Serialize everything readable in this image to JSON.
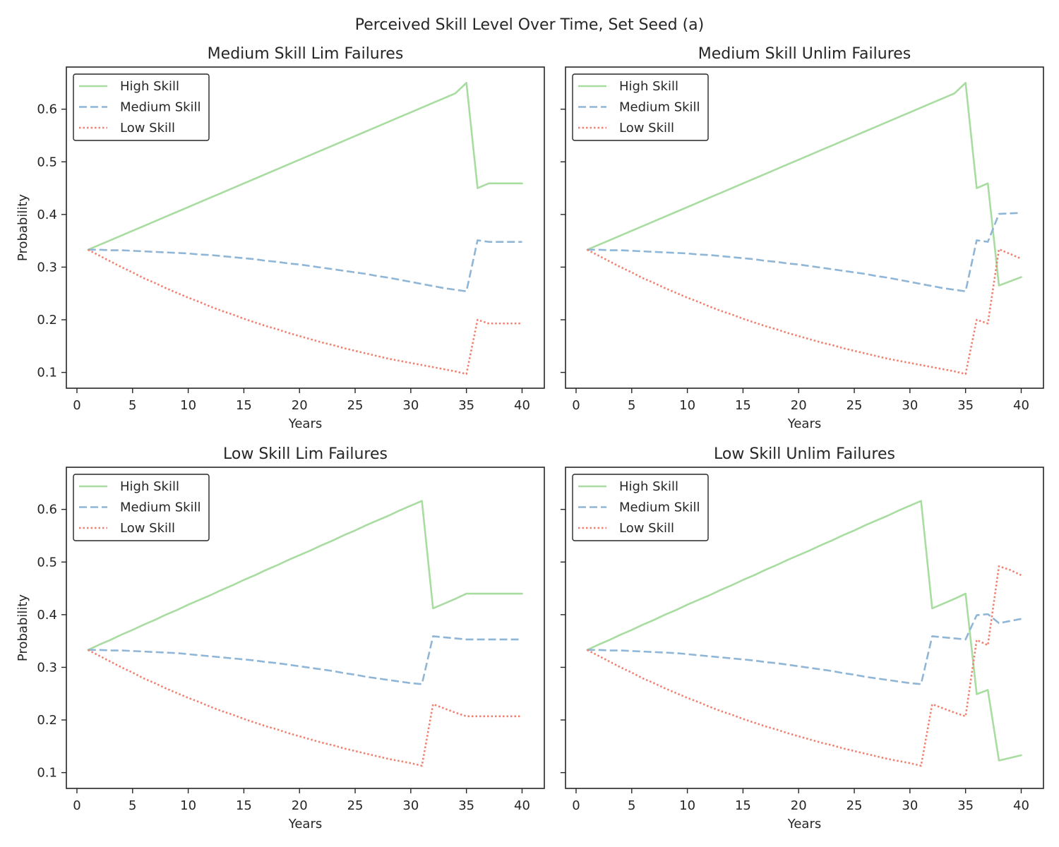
{
  "figure": {
    "suptitle": "Perceived Skill Level Over Time, Set Seed (a)"
  },
  "style": {
    "colors": {
      "high": "#a8dca0",
      "medium": "#8fb6d6",
      "low": "#f08070",
      "axes": "#262626",
      "background": "#ffffff"
    }
  },
  "chart_data": [
    {
      "type": "line",
      "title": "Medium Skill Lim Failures",
      "xlabel": "Years",
      "ylabel": "Probability",
      "xlim": [
        -0.95,
        42.0
      ],
      "ylim": [
        0.07,
        0.68
      ],
      "xticks": [
        0,
        5,
        10,
        15,
        20,
        25,
        30,
        35,
        40
      ],
      "yticks": [
        0.1,
        0.2,
        0.3,
        0.4,
        0.5,
        0.6
      ],
      "ytick_labels": [
        "0.1",
        "0.2",
        "0.3",
        "0.4",
        "0.5",
        "0.6"
      ],
      "show_ytick_labels": true,
      "grid": false,
      "legend": "top-left",
      "x": [
        1,
        2,
        3,
        4,
        5,
        6,
        7,
        8,
        9,
        10,
        11,
        12,
        13,
        14,
        15,
        16,
        17,
        18,
        19,
        20,
        21,
        22,
        23,
        24,
        25,
        26,
        27,
        28,
        29,
        30,
        31,
        32,
        33,
        34,
        35,
        36,
        37,
        38,
        39,
        40
      ],
      "series": [
        {
          "name": "High Skill",
          "style": "solid",
          "values": [
            0.333,
            0.342,
            0.351,
            0.36,
            0.369,
            0.378,
            0.387,
            0.396,
            0.405,
            0.414,
            0.423,
            0.432,
            0.441,
            0.45,
            0.459,
            0.468,
            0.477,
            0.486,
            0.495,
            0.504,
            0.513,
            0.522,
            0.531,
            0.54,
            0.549,
            0.558,
            0.567,
            0.576,
            0.585,
            0.594,
            0.603,
            0.612,
            0.621,
            0.63,
            0.65,
            0.45,
            0.459,
            0.459,
            0.459,
            0.459
          ]
        },
        {
          "name": "Medium Skill",
          "style": "dashed",
          "values": [
            0.333,
            0.333,
            0.332,
            0.332,
            0.331,
            0.33,
            0.329,
            0.328,
            0.327,
            0.326,
            0.324,
            0.323,
            0.321,
            0.319,
            0.317,
            0.315,
            0.312,
            0.31,
            0.307,
            0.305,
            0.302,
            0.299,
            0.296,
            0.293,
            0.29,
            0.287,
            0.283,
            0.28,
            0.276,
            0.272,
            0.268,
            0.264,
            0.26,
            0.257,
            0.254,
            0.351,
            0.348,
            0.348,
            0.348,
            0.348
          ]
        },
        {
          "name": "Low Skill",
          "style": "dotted",
          "values": [
            0.333,
            0.322,
            0.311,
            0.3,
            0.29,
            0.279,
            0.27,
            0.26,
            0.251,
            0.242,
            0.234,
            0.225,
            0.217,
            0.21,
            0.202,
            0.195,
            0.188,
            0.182,
            0.175,
            0.169,
            0.163,
            0.157,
            0.152,
            0.146,
            0.141,
            0.136,
            0.131,
            0.126,
            0.122,
            0.118,
            0.114,
            0.11,
            0.106,
            0.102,
            0.097,
            0.2,
            0.193,
            0.193,
            0.193,
            0.193
          ]
        }
      ]
    },
    {
      "type": "line",
      "title": "Medium Skill Unlim Failures",
      "xlabel": "Years",
      "ylabel": "",
      "xlim": [
        -0.95,
        42.0
      ],
      "ylim": [
        0.07,
        0.68
      ],
      "xticks": [
        0,
        5,
        10,
        15,
        20,
        25,
        30,
        35,
        40
      ],
      "yticks": [
        0.1,
        0.2,
        0.3,
        0.4,
        0.5,
        0.6
      ],
      "ytick_labels": [
        "0.1",
        "0.2",
        "0.3",
        "0.4",
        "0.5",
        "0.6"
      ],
      "show_ytick_labels": false,
      "grid": false,
      "legend": "top-left",
      "x": [
        1,
        2,
        3,
        4,
        5,
        6,
        7,
        8,
        9,
        10,
        11,
        12,
        13,
        14,
        15,
        16,
        17,
        18,
        19,
        20,
        21,
        22,
        23,
        24,
        25,
        26,
        27,
        28,
        29,
        30,
        31,
        32,
        33,
        34,
        35,
        36,
        37,
        38,
        39,
        40
      ],
      "series": [
        {
          "name": "High Skill",
          "style": "solid",
          "values": [
            0.333,
            0.342,
            0.351,
            0.36,
            0.369,
            0.378,
            0.387,
            0.396,
            0.405,
            0.414,
            0.423,
            0.432,
            0.441,
            0.45,
            0.459,
            0.468,
            0.477,
            0.486,
            0.495,
            0.504,
            0.513,
            0.522,
            0.531,
            0.54,
            0.549,
            0.558,
            0.567,
            0.576,
            0.585,
            0.594,
            0.603,
            0.612,
            0.621,
            0.63,
            0.65,
            0.45,
            0.459,
            0.265,
            0.273,
            0.281
          ]
        },
        {
          "name": "Medium Skill",
          "style": "dashed",
          "values": [
            0.333,
            0.333,
            0.332,
            0.332,
            0.331,
            0.33,
            0.329,
            0.328,
            0.327,
            0.326,
            0.324,
            0.323,
            0.321,
            0.319,
            0.317,
            0.315,
            0.312,
            0.31,
            0.307,
            0.305,
            0.302,
            0.299,
            0.296,
            0.293,
            0.29,
            0.287,
            0.283,
            0.28,
            0.276,
            0.272,
            0.268,
            0.264,
            0.26,
            0.257,
            0.254,
            0.351,
            0.348,
            0.401,
            0.402,
            0.403
          ]
        },
        {
          "name": "Low Skill",
          "style": "dotted",
          "values": [
            0.333,
            0.322,
            0.311,
            0.3,
            0.29,
            0.279,
            0.27,
            0.26,
            0.251,
            0.242,
            0.234,
            0.225,
            0.217,
            0.21,
            0.202,
            0.195,
            0.188,
            0.182,
            0.175,
            0.169,
            0.163,
            0.157,
            0.152,
            0.146,
            0.141,
            0.136,
            0.131,
            0.126,
            0.122,
            0.118,
            0.114,
            0.11,
            0.106,
            0.102,
            0.097,
            0.2,
            0.193,
            0.334,
            0.325,
            0.316
          ]
        }
      ]
    },
    {
      "type": "line",
      "title": "Low Skill Lim Failures",
      "xlabel": "Years",
      "ylabel": "Probability",
      "xlim": [
        -0.95,
        42.0
      ],
      "ylim": [
        0.07,
        0.68
      ],
      "xticks": [
        0,
        5,
        10,
        15,
        20,
        25,
        30,
        35,
        40
      ],
      "yticks": [
        0.1,
        0.2,
        0.3,
        0.4,
        0.5,
        0.6
      ],
      "ytick_labels": [
        "0.1",
        "0.2",
        "0.3",
        "0.4",
        "0.5",
        "0.6"
      ],
      "show_ytick_labels": true,
      "grid": false,
      "legend": "top-left",
      "x": [
        1,
        2,
        3,
        4,
        5,
        6,
        7,
        8,
        9,
        10,
        11,
        12,
        13,
        14,
        15,
        16,
        17,
        18,
        19,
        20,
        21,
        22,
        23,
        24,
        25,
        26,
        27,
        28,
        29,
        30,
        31,
        32,
        33,
        34,
        35,
        36,
        37,
        38,
        39,
        40
      ],
      "series": [
        {
          "name": "High Skill",
          "style": "solid",
          "values": [
            0.333,
            0.343,
            0.352,
            0.362,
            0.371,
            0.381,
            0.39,
            0.4,
            0.409,
            0.419,
            0.428,
            0.437,
            0.447,
            0.456,
            0.466,
            0.475,
            0.485,
            0.494,
            0.504,
            0.513,
            0.522,
            0.532,
            0.541,
            0.551,
            0.56,
            0.57,
            0.579,
            0.588,
            0.598,
            0.607,
            0.616,
            0.412,
            0.421,
            0.43,
            0.44,
            0.44,
            0.44,
            0.44,
            0.44,
            0.44
          ]
        },
        {
          "name": "Medium Skill",
          "style": "dashed",
          "values": [
            0.333,
            0.333,
            0.332,
            0.332,
            0.331,
            0.33,
            0.329,
            0.328,
            0.327,
            0.325,
            0.323,
            0.321,
            0.319,
            0.317,
            0.315,
            0.313,
            0.31,
            0.308,
            0.305,
            0.302,
            0.299,
            0.296,
            0.293,
            0.289,
            0.286,
            0.282,
            0.279,
            0.276,
            0.273,
            0.27,
            0.268,
            0.359,
            0.357,
            0.355,
            0.353,
            0.353,
            0.353,
            0.353,
            0.353,
            0.353
          ]
        },
        {
          "name": "Low Skill",
          "style": "dotted",
          "values": [
            0.333,
            0.322,
            0.311,
            0.3,
            0.29,
            0.279,
            0.27,
            0.26,
            0.251,
            0.242,
            0.234,
            0.225,
            0.217,
            0.21,
            0.202,
            0.195,
            0.188,
            0.182,
            0.175,
            0.169,
            0.163,
            0.157,
            0.152,
            0.146,
            0.141,
            0.136,
            0.131,
            0.126,
            0.122,
            0.118,
            0.113,
            0.23,
            0.222,
            0.214,
            0.207,
            0.207,
            0.207,
            0.207,
            0.207,
            0.207
          ]
        }
      ]
    },
    {
      "type": "line",
      "title": "Low Skill Unlim Failures",
      "xlabel": "Years",
      "ylabel": "",
      "xlim": [
        -0.95,
        42.0
      ],
      "ylim": [
        0.07,
        0.68
      ],
      "xticks": [
        0,
        5,
        10,
        15,
        20,
        25,
        30,
        35,
        40
      ],
      "yticks": [
        0.1,
        0.2,
        0.3,
        0.4,
        0.5,
        0.6
      ],
      "ytick_labels": [
        "0.1",
        "0.2",
        "0.3",
        "0.4",
        "0.5",
        "0.6"
      ],
      "show_ytick_labels": false,
      "grid": false,
      "legend": "top-left",
      "x": [
        1,
        2,
        3,
        4,
        5,
        6,
        7,
        8,
        9,
        10,
        11,
        12,
        13,
        14,
        15,
        16,
        17,
        18,
        19,
        20,
        21,
        22,
        23,
        24,
        25,
        26,
        27,
        28,
        29,
        30,
        31,
        32,
        33,
        34,
        35,
        36,
        37,
        38,
        39,
        40
      ],
      "series": [
        {
          "name": "High Skill",
          "style": "solid",
          "values": [
            0.333,
            0.343,
            0.352,
            0.362,
            0.371,
            0.381,
            0.39,
            0.4,
            0.409,
            0.419,
            0.428,
            0.437,
            0.447,
            0.456,
            0.466,
            0.475,
            0.485,
            0.494,
            0.504,
            0.513,
            0.522,
            0.532,
            0.541,
            0.551,
            0.56,
            0.57,
            0.579,
            0.588,
            0.598,
            0.607,
            0.616,
            0.412,
            0.421,
            0.43,
            0.44,
            0.249,
            0.257,
            0.123,
            0.128,
            0.133
          ]
        },
        {
          "name": "Medium Skill",
          "style": "dashed",
          "values": [
            0.333,
            0.333,
            0.332,
            0.332,
            0.331,
            0.33,
            0.329,
            0.328,
            0.327,
            0.325,
            0.323,
            0.321,
            0.319,
            0.317,
            0.315,
            0.313,
            0.31,
            0.308,
            0.305,
            0.302,
            0.299,
            0.296,
            0.293,
            0.289,
            0.286,
            0.282,
            0.279,
            0.276,
            0.273,
            0.27,
            0.268,
            0.359,
            0.357,
            0.355,
            0.353,
            0.399,
            0.401,
            0.384,
            0.388,
            0.392
          ]
        },
        {
          "name": "Low Skill",
          "style": "dotted",
          "values": [
            0.333,
            0.322,
            0.311,
            0.3,
            0.29,
            0.279,
            0.27,
            0.26,
            0.251,
            0.242,
            0.234,
            0.225,
            0.217,
            0.21,
            0.202,
            0.195,
            0.188,
            0.182,
            0.175,
            0.169,
            0.163,
            0.157,
            0.152,
            0.146,
            0.141,
            0.136,
            0.131,
            0.126,
            0.122,
            0.118,
            0.113,
            0.23,
            0.222,
            0.214,
            0.207,
            0.352,
            0.342,
            0.492,
            0.485,
            0.475
          ]
        }
      ]
    }
  ]
}
